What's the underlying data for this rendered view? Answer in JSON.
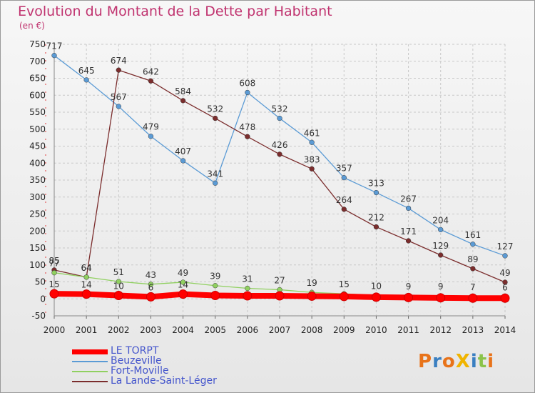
{
  "title": "Evolution du Montant de la Dette par Habitant",
  "unit": "(en €)",
  "logo": {
    "text": "ProXiti",
    "colors": [
      "#e8731a",
      "#3a7fc1",
      "#e8731a",
      "#f0b400",
      "#3a7fc1",
      "#8bc34a",
      "#e8731a"
    ]
  },
  "chart_data": {
    "type": "line",
    "x": [
      2000,
      2001,
      2002,
      2003,
      2004,
      2005,
      2006,
      2007,
      2008,
      2009,
      2010,
      2011,
      2012,
      2013,
      2014
    ],
    "ylim": [
      -50,
      750
    ],
    "yticks": [
      -50,
      0,
      50,
      100,
      150,
      200,
      250,
      300,
      350,
      400,
      450,
      500,
      550,
      600,
      650,
      700,
      750
    ],
    "grid": true,
    "legend_position": "bottom-left",
    "series": [
      {
        "name": "LE TORPT",
        "color": "#ff0000",
        "values": [
          15,
          14,
          10,
          6,
          14,
          10,
          9,
          9,
          8,
          7,
          5,
          4,
          3,
          2,
          2
        ],
        "labels": [
          "15",
          "14",
          "10",
          "6",
          "14",
          "",
          "",
          "",
          "",
          "",
          "",
          "",
          "",
          "",
          ""
        ]
      },
      {
        "name": "Beuzeville",
        "color": "#5b9bd5",
        "values": [
          717,
          645,
          567,
          479,
          407,
          341,
          608,
          532,
          461,
          357,
          313,
          267,
          204,
          161,
          127
        ],
        "labels": [
          "717",
          "645",
          "567",
          "479",
          "407",
          "341",
          "608",
          "532",
          "461",
          "357",
          "313",
          "267",
          "204",
          "161",
          "127"
        ]
      },
      {
        "name": "Fort-Moville",
        "color": "#90d060",
        "values": [
          77,
          64,
          51,
          43,
          49,
          39,
          31,
          27,
          19,
          15,
          10,
          9,
          9,
          7,
          6
        ],
        "labels": [
          "77",
          "64",
          "51",
          "43",
          "49",
          "39",
          "31",
          "27",
          "19",
          "15",
          "10",
          "9",
          "9",
          "7",
          "6"
        ]
      },
      {
        "name": "La Lande-Saint-Léger",
        "color": "#7b2d2d",
        "values": [
          85,
          64,
          674,
          642,
          584,
          532,
          478,
          426,
          383,
          264,
          212,
          171,
          129,
          89,
          49
        ],
        "labels": [
          "85",
          "64",
          "674",
          "642",
          "584",
          "532",
          "478",
          "426",
          "383",
          "264",
          "212",
          "171",
          "129",
          "89",
          "49"
        ]
      }
    ]
  }
}
